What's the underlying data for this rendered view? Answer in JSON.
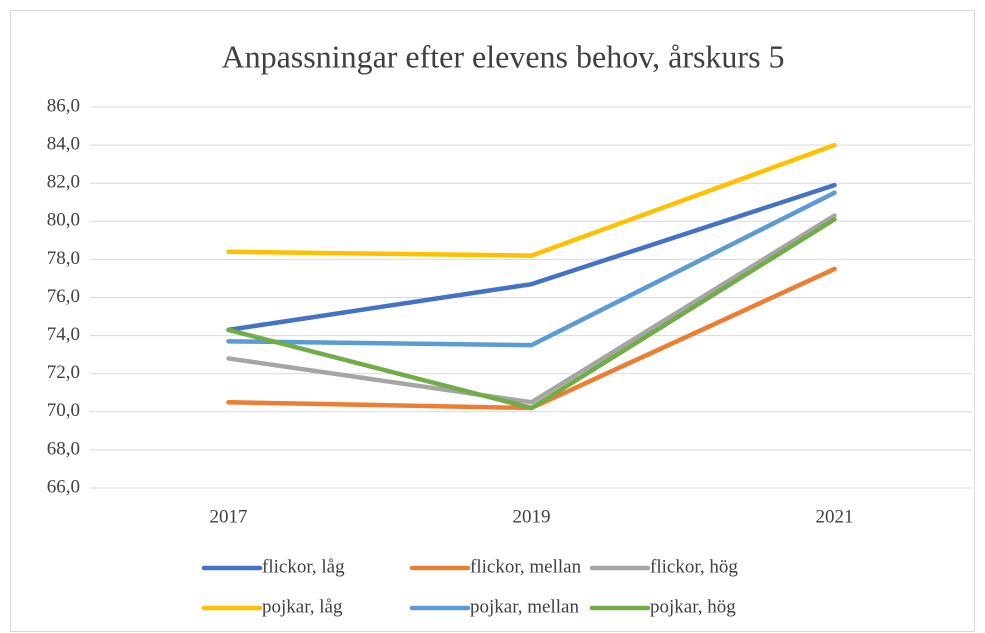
{
  "chart_data": {
    "type": "line",
    "title": "Anpassningar efter elevens behov, årskurs 5",
    "categories": [
      "2017",
      "2019",
      "2021"
    ],
    "series": [
      {
        "name": "flickor, låg",
        "color": "#4472c4",
        "values": [
          74.3,
          76.7,
          81.9
        ]
      },
      {
        "name": "flickor, mellan",
        "color": "#ed7d31",
        "values": [
          70.5,
          70.2,
          77.5
        ]
      },
      {
        "name": "flickor, hög",
        "color": "#a5a5a5",
        "values": [
          72.8,
          70.5,
          80.3
        ]
      },
      {
        "name": "pojkar, låg",
        "color": "#ffc000",
        "values": [
          78.4,
          78.2,
          84.0
        ]
      },
      {
        "name": "pojkar, mellan",
        "color": "#5b9bd5",
        "values": [
          73.7,
          73.5,
          81.5
        ]
      },
      {
        "name": "pojkar, hög",
        "color": "#70ad47",
        "values": [
          74.3,
          70.2,
          80.1
        ]
      }
    ],
    "ylim": [
      66,
      86
    ],
    "yticks": [
      {
        "value": 66,
        "label": "66,0"
      },
      {
        "value": 68,
        "label": "68,0"
      },
      {
        "value": 70,
        "label": "70,0"
      },
      {
        "value": 72,
        "label": "72,0"
      },
      {
        "value": 74,
        "label": "74,0"
      },
      {
        "value": 76,
        "label": "76,0"
      },
      {
        "value": 78,
        "label": "78,0"
      },
      {
        "value": 80,
        "label": "80,0"
      },
      {
        "value": 82,
        "label": "82,0"
      },
      {
        "value": 84,
        "label": "84,0"
      },
      {
        "value": 86,
        "label": "86,0"
      }
    ],
    "grid": true,
    "legend": "bottom"
  }
}
